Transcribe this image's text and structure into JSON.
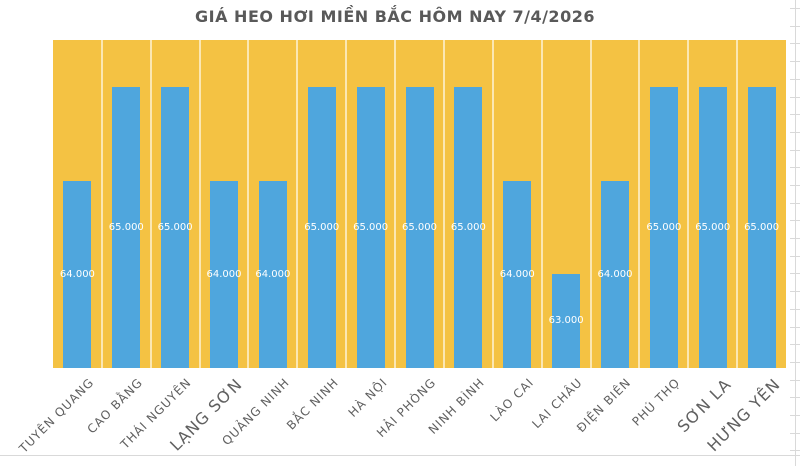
{
  "chart_data": {
    "type": "bar",
    "title": "GIÁ HEO HƠI MIỀN BẮC HÔM NAY 7/4/2026",
    "categories": [
      "TUYÊN QUANG",
      "CAO BẰNG",
      "THÁI NGUYÊN",
      "LẠNG SƠN",
      "QUẢNG NINH",
      "BẮC NINH",
      "HÀ NỘI",
      "HẢI PHÒNG",
      "NINH BÌNH",
      "LÀO CAI",
      "LAI CHÂU",
      "ĐIỆN BIÊN",
      "PHÚ THỌ",
      "SƠN LA",
      "HƯNG YÊN"
    ],
    "values": [
      64000,
      65000,
      65000,
      64000,
      64000,
      65000,
      65000,
      65000,
      65000,
      64000,
      63000,
      64000,
      65000,
      65000,
      65000
    ],
    "data_labels": [
      "64.000",
      "65.000",
      "65.000",
      "64.000",
      "64.000",
      "65.000",
      "65.000",
      "65.000",
      "65.000",
      "64.000",
      "63.000",
      "64.000",
      "65.000",
      "65.000",
      "65.000"
    ],
    "large_category_labels": [
      "LẠNG SƠN",
      "SƠN LA",
      "HƯNG YÊN"
    ],
    "xlabel": "",
    "ylabel": "",
    "ylim": [
      62000,
      65500
    ],
    "legend": "none",
    "axis_tick_labels_visible": false,
    "gridlines": "vertical white category separators inside plot area",
    "colors": {
      "bar": "#4FA6DD",
      "plot_background": "#F4C243",
      "data_label": "#FFFFFF",
      "category_label": "#606060",
      "title": "#595959",
      "sheet_gridline": "#D9D9D9",
      "chart_background": "#FFFFFF"
    }
  }
}
